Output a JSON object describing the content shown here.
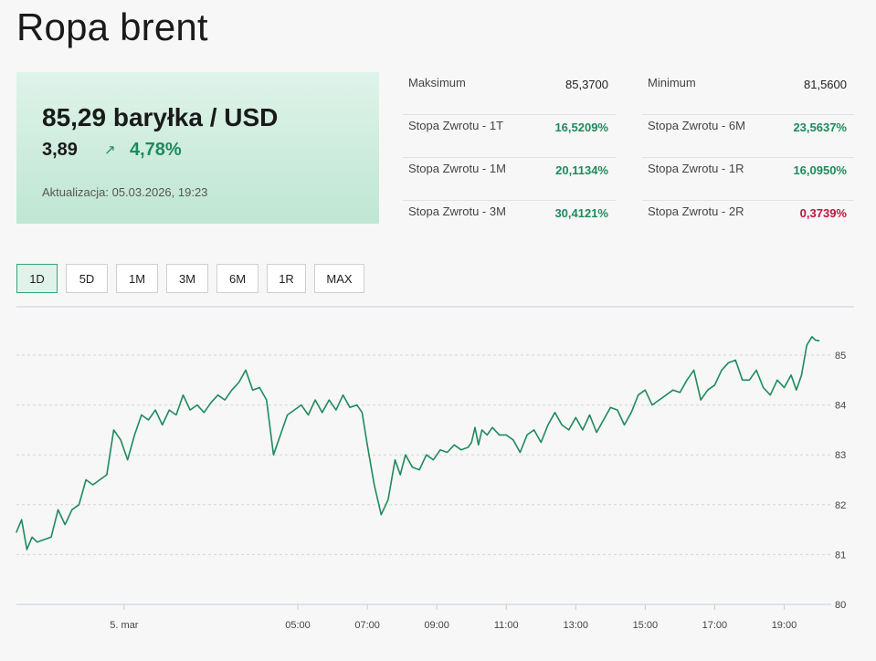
{
  "title": "Ropa brent",
  "quote": {
    "price": "85,29 baryłka / USD",
    "change": "3,89",
    "change_pct": "4,78%",
    "trend_icon": "arrow-up-right-icon",
    "updated": "Aktualizacja: 05.03.2026, 19:23"
  },
  "stats": {
    "col1": [
      {
        "label": "Maksimum",
        "value": "85,3700",
        "tone": "plain"
      },
      {
        "label": "Stopa Zwrotu - 1T",
        "value": "16,5209%",
        "tone": "pos"
      },
      {
        "label": "Stopa Zwrotu - 1M",
        "value": "20,1134%",
        "tone": "pos"
      },
      {
        "label": "Stopa Zwrotu - 3M",
        "value": "30,4121%",
        "tone": "pos"
      }
    ],
    "col2": [
      {
        "label": "Minimum",
        "value": "81,5600",
        "tone": "plain"
      },
      {
        "label": "Stopa Zwrotu - 6M",
        "value": "23,5637%",
        "tone": "pos"
      },
      {
        "label": "Stopa Zwrotu - 1R",
        "value": "16,0950%",
        "tone": "pos"
      },
      {
        "label": "Stopa Zwrotu - 2R",
        "value": "0,3739%",
        "tone": "neg"
      }
    ]
  },
  "range_buttons": [
    {
      "label": "1D",
      "active": true
    },
    {
      "label": "5D",
      "active": false
    },
    {
      "label": "1M",
      "active": false
    },
    {
      "label": "3M",
      "active": false
    },
    {
      "label": "6M",
      "active": false
    },
    {
      "label": "1R",
      "active": false
    },
    {
      "label": "MAX",
      "active": false
    }
  ],
  "colors": {
    "line": "#1f8a5c",
    "positive": "#1f8a5c",
    "negative": "#c0143c",
    "accent_bg": "#dff3ea"
  },
  "chart_data": {
    "type": "line",
    "title": "",
    "xlabel": "",
    "ylabel": "",
    "ylim": [
      80,
      85.5
    ],
    "xlim_hours": [
      -3.1,
      20.25
    ],
    "yticks": [
      80,
      81,
      82,
      83,
      84,
      85
    ],
    "ytick_labels": [
      "80",
      "81",
      "82",
      "83",
      "84",
      "85"
    ],
    "xticks": [
      {
        "hour": 0,
        "label": "5. mar"
      },
      {
        "hour": 5,
        "label": "05:00"
      },
      {
        "hour": 7,
        "label": "07:00"
      },
      {
        "hour": 9,
        "label": "09:00"
      },
      {
        "hour": 11,
        "label": "11:00"
      },
      {
        "hour": 13,
        "label": "13:00"
      },
      {
        "hour": 15,
        "label": "15:00"
      },
      {
        "hour": 17,
        "label": "17:00"
      },
      {
        "hour": 19,
        "label": "19:00"
      }
    ],
    "grid": true,
    "legend": "none",
    "series": [
      {
        "x": [
          -3.1,
          -2.95,
          -2.8,
          -2.65,
          -2.5,
          -2.3,
          -2.1,
          -1.9,
          -1.7,
          -1.5,
          -1.3,
          -1.1,
          -0.9,
          -0.7,
          -0.5,
          -0.3,
          -0.1,
          0.1,
          0.3,
          0.5,
          0.7,
          0.9,
          1.1,
          1.3,
          1.5,
          1.7,
          1.9,
          2.1,
          2.3,
          2.5,
          2.7,
          2.9,
          3.1,
          3.3,
          3.5,
          3.7,
          3.9,
          4.1,
          4.3,
          4.5,
          4.7,
          4.9,
          5.1,
          5.3,
          5.5,
          5.7,
          5.9,
          6.1,
          6.3,
          6.5,
          6.7,
          6.85,
          7.0,
          7.2,
          7.4,
          7.6,
          7.8,
          7.95,
          8.1,
          8.3,
          8.5,
          8.7,
          8.9,
          9.1,
          9.3,
          9.5,
          9.7,
          9.9,
          10.0,
          10.1,
          10.2,
          10.3,
          10.45,
          10.6,
          10.8,
          11.0,
          11.2,
          11.4,
          11.6,
          11.8,
          12.0,
          12.2,
          12.4,
          12.6,
          12.8,
          13.0,
          13.2,
          13.4,
          13.6,
          13.8,
          14.0,
          14.2,
          14.4,
          14.6,
          14.8,
          15.0,
          15.2,
          15.4,
          15.6,
          15.8,
          16.0,
          16.2,
          16.4,
          16.6,
          16.8,
          17.0,
          17.2,
          17.4,
          17.6,
          17.8,
          18.0,
          18.2,
          18.4,
          18.6,
          18.8,
          19.0,
          19.2,
          19.35,
          19.5,
          19.65,
          19.8,
          19.9,
          20.0
        ],
        "y": [
          81.45,
          81.7,
          81.1,
          81.35,
          81.25,
          81.3,
          81.35,
          81.9,
          81.6,
          81.9,
          82.0,
          82.5,
          82.4,
          82.5,
          82.6,
          83.5,
          83.3,
          82.9,
          83.4,
          83.8,
          83.7,
          83.9,
          83.6,
          83.9,
          83.8,
          84.2,
          83.9,
          84.0,
          83.85,
          84.05,
          84.2,
          84.1,
          84.3,
          84.45,
          84.7,
          84.3,
          84.35,
          84.1,
          83.0,
          83.4,
          83.8,
          83.9,
          84.0,
          83.8,
          84.1,
          83.85,
          84.1,
          83.9,
          84.2,
          83.95,
          84.0,
          83.85,
          83.2,
          82.4,
          81.8,
          82.1,
          82.9,
          82.6,
          83.0,
          82.75,
          82.7,
          83.0,
          82.9,
          83.1,
          83.05,
          83.2,
          83.1,
          83.15,
          83.25,
          83.55,
          83.2,
          83.5,
          83.4,
          83.55,
          83.4,
          83.4,
          83.3,
          83.05,
          83.4,
          83.5,
          83.25,
          83.6,
          83.85,
          83.6,
          83.5,
          83.75,
          83.5,
          83.8,
          83.45,
          83.7,
          83.95,
          83.9,
          83.6,
          83.85,
          84.2,
          84.3,
          84.0,
          84.1,
          84.2,
          84.3,
          84.25,
          84.5,
          84.7,
          84.1,
          84.3,
          84.4,
          84.7,
          84.85,
          84.9,
          84.5,
          84.5,
          84.7,
          84.35,
          84.2,
          84.5,
          84.35,
          84.6,
          84.3,
          84.6,
          85.2,
          85.37,
          85.3,
          85.29
        ]
      }
    ]
  }
}
